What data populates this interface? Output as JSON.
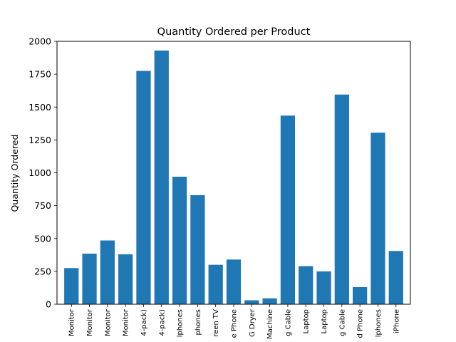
{
  "chart_data": {
    "type": "bar",
    "title": "Quantity Ordered per Product",
    "xlabel": "",
    "ylabel": "Quantity Ordered",
    "ylim": [
      0,
      2000
    ],
    "yticks": [
      0,
      250,
      500,
      750,
      1000,
      1250,
      1500,
      1750,
      2000
    ],
    "ytick_labels": [
      "0",
      "250",
      "500",
      "750",
      "1000",
      "1250",
      "1500",
      "1750",
      "2000"
    ],
    "categories": [
      "Monitor",
      "Monitor",
      "Monitor",
      "Monitor",
      "4-pack)",
      "4-pack)",
      "lphones",
      "phones",
      "reen TV",
      "e Phone",
      "G Dryer",
      "Machine",
      "g Cable",
      "Laptop",
      "Laptop",
      "g Cable",
      "d Phone",
      "lphones",
      "iPhone"
    ],
    "values": [
      275,
      385,
      485,
      380,
      1775,
      1930,
      970,
      830,
      300,
      340,
      30,
      45,
      1435,
      290,
      250,
      1595,
      130,
      1305,
      405
    ],
    "bar_color": "#1f77b4",
    "grid": false
  }
}
